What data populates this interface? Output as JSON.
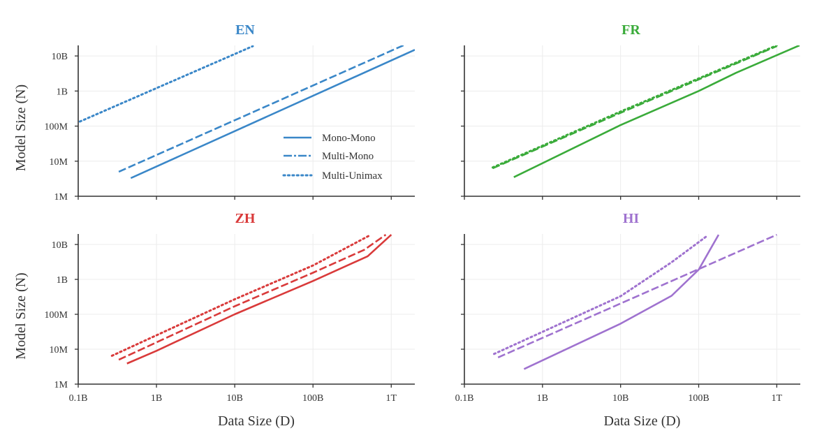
{
  "chart_data": [
    {
      "type": "line",
      "title": "EN",
      "color": "#3a87c8",
      "xlabel": "",
      "ylabel": "Model Size (N)",
      "xscale": "log",
      "yscale": "log",
      "xlim": [
        100000000.0,
        2000000000000.0
      ],
      "ylim": [
        1000000.0,
        20000000000.0
      ],
      "xticks": [
        100000000.0,
        1000000000.0,
        10000000000.0,
        100000000000.0,
        1000000000000.0
      ],
      "xtick_labels": [
        "0.1B",
        "1B",
        "10B",
        "100B",
        "1T"
      ],
      "show_xtick_labels": false,
      "yticks": [
        1000000.0,
        10000000.0,
        100000000.0,
        1000000000.0,
        10000000000.0
      ],
      "ytick_labels": [
        "1M",
        "10M",
        "100M",
        "1B",
        "10B"
      ],
      "show_ytick_labels": true,
      "grid": true,
      "legend": {
        "placement": "lower-right",
        "entries": [
          "Mono-Mono",
          "Multi-Mono",
          "Multi-Unimax"
        ]
      },
      "series": [
        {
          "name": "Mono-Mono",
          "style": "solid",
          "points": [
            [
              470000000.0,
              3300000.0
            ],
            [
              2000000000000.0,
              15000000000.0
            ]
          ]
        },
        {
          "name": "Multi-Mono",
          "style": "dashed",
          "points": [
            [
              330000000.0,
              5000000.0
            ],
            [
              1500000000000.0,
              21000000000.0
            ]
          ]
        },
        {
          "name": "Multi-Unimax",
          "style": "dotted",
          "points": [
            [
              105000000.0,
              135000000.0
            ],
            [
              17000000000.0,
              19000000000.0
            ]
          ]
        }
      ]
    },
    {
      "type": "line",
      "title": "FR",
      "color": "#3aab3a",
      "xlabel": "",
      "ylabel": "",
      "xscale": "log",
      "yscale": "log",
      "xlim": [
        100000000.0,
        2000000000000.0
      ],
      "ylim": [
        1000000.0,
        20000000000.0
      ],
      "xticks": [
        100000000.0,
        1000000000.0,
        10000000000.0,
        100000000000.0,
        1000000000000.0
      ],
      "xtick_labels": [
        "0.1B",
        "1B",
        "10B",
        "100B",
        "1T"
      ],
      "show_xtick_labels": false,
      "yticks": [
        1000000.0,
        10000000.0,
        100000000.0,
        1000000000.0,
        10000000000.0
      ],
      "ytick_labels": [
        "1M",
        "10M",
        "100M",
        "1B",
        "10B"
      ],
      "show_ytick_labels": false,
      "grid": true,
      "series": [
        {
          "name": "Mono-Mono",
          "style": "solid",
          "points": [
            [
              430000000.0,
              3500000.0
            ],
            [
              10000000000.0,
              107000000.0
            ],
            [
              100000000000.0,
              1000000000.0
            ],
            [
              300000000000.0,
              3300000000.0
            ],
            [
              1950000000000.0,
              20000000000.0
            ]
          ]
        },
        {
          "name": "Multi-Mono",
          "style": "dashed",
          "points": [
            [
              230000000.0,
              6300000.0
            ],
            [
              10000000000.0,
              240000000.0
            ],
            [
              1000000000000.0,
              19000000000.0
            ]
          ]
        },
        {
          "name": "Multi-Unimax",
          "style": "dotted",
          "points": [
            [
              230000000.0,
              6600000.0
            ],
            [
              10000000000.0,
              260000000.0
            ],
            [
              1000000000000.0,
              20000000000.0
            ]
          ]
        }
      ]
    },
    {
      "type": "line",
      "title": "ZH",
      "color": "#d93a3a",
      "xlabel": "Data Size (D)",
      "ylabel": "Model Size (N)",
      "xscale": "log",
      "yscale": "log",
      "xlim": [
        100000000.0,
        2000000000000.0
      ],
      "ylim": [
        1000000.0,
        20000000000.0
      ],
      "xticks": [
        100000000.0,
        1000000000.0,
        10000000000.0,
        100000000000.0,
        1000000000000.0
      ],
      "xtick_labels": [
        "0.1B",
        "1B",
        "10B",
        "100B",
        "1T"
      ],
      "show_xtick_labels": true,
      "yticks": [
        1000000.0,
        10000000.0,
        100000000.0,
        1000000000.0,
        10000000000.0
      ],
      "ytick_labels": [
        "1M",
        "10M",
        "100M",
        "1B",
        "10B"
      ],
      "show_ytick_labels": true,
      "grid": true,
      "series": [
        {
          "name": "Mono-Mono",
          "style": "solid",
          "points": [
            [
              420000000.0,
              3900000.0
            ],
            [
              1000000000.0,
              9000000.0
            ],
            [
              10000000000.0,
              100000000.0
            ],
            [
              100000000000.0,
              900000000.0
            ],
            [
              500000000000.0,
              4600000000.0
            ],
            [
              1000000000000.0,
              19000000000.0
            ]
          ]
        },
        {
          "name": "Multi-Mono",
          "style": "dashed",
          "points": [
            [
              330000000.0,
              5000000.0
            ],
            [
              10000000000.0,
              170000000.0
            ],
            [
              100000000000.0,
              1550000000.0
            ],
            [
              450000000000.0,
              7000000000.0
            ],
            [
              850000000000.0,
              19000000000.0
            ]
          ]
        },
        {
          "name": "Multi-Unimax",
          "style": "dotted",
          "points": [
            [
              270000000.0,
              6500000.0
            ],
            [
              10000000000.0,
              270000000.0
            ],
            [
              100000000000.0,
              2500000000.0
            ],
            [
              550000000000.0,
              19000000000.0
            ]
          ]
        }
      ]
    },
    {
      "type": "line",
      "title": "HI",
      "color": "#9f72cf",
      "xlabel": "Data Size (D)",
      "ylabel": "",
      "xscale": "log",
      "yscale": "log",
      "xlim": [
        100000000.0,
        2000000000000.0
      ],
      "ylim": [
        1000000.0,
        20000000000.0
      ],
      "xticks": [
        100000000.0,
        1000000000.0,
        10000000000.0,
        100000000000.0,
        1000000000000.0
      ],
      "xtick_labels": [
        "0.1B",
        "1B",
        "10B",
        "100B",
        "1T"
      ],
      "show_xtick_labels": true,
      "yticks": [
        1000000.0,
        10000000.0,
        100000000.0,
        1000000000.0,
        10000000000.0
      ],
      "ytick_labels": [
        "1M",
        "10M",
        "100M",
        "1B",
        "10B"
      ],
      "show_ytick_labels": false,
      "grid": true,
      "series": [
        {
          "name": "Mono-Mono",
          "style": "solid",
          "points": [
            [
              580000000.0,
              2700000.0
            ],
            [
              10000000000.0,
              54000000.0
            ],
            [
              45000000000.0,
              340000000.0
            ],
            [
              100000000000.0,
              1900000000.0
            ],
            [
              180000000000.0,
              19000000000.0
            ]
          ]
        },
        {
          "name": "Multi-Mono",
          "style": "dashed",
          "points": [
            [
              270000000.0,
              5800000.0
            ],
            [
              1000000000000.0,
              19000000000.0
            ]
          ]
        },
        {
          "name": "Multi-Unimax",
          "style": "dotted",
          "points": [
            [
              240000000.0,
              7300000.0
            ],
            [
              10000000000.0,
              330000000.0
            ],
            [
              45000000000.0,
              3100000000.0
            ],
            [
              130000000000.0,
              18000000000.0
            ]
          ]
        }
      ]
    }
  ]
}
